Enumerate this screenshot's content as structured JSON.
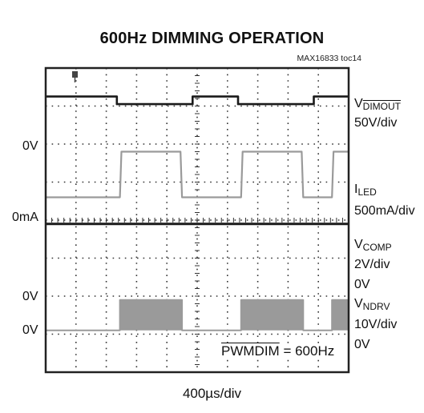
{
  "title": "600Hz DIMMING OPERATION",
  "toc": "MAX16833 toc14",
  "time_scale": "400µs/div",
  "annotation": {
    "signal": "PWMDIM",
    "value": "= 600Hz"
  },
  "left_labels": [
    "0V",
    "0mA",
    "0V",
    "0V"
  ],
  "right_labels": [
    {
      "main": "V",
      "sub": "DIMOUT",
      "sub_overline": true,
      "scale": "50V/div"
    },
    {
      "main": "I",
      "sub": "LED",
      "scale": "500mA/div"
    },
    {
      "main": "V",
      "sub": "COMP",
      "scale": "2V/div",
      "ground": "0V"
    },
    {
      "main": "V",
      "sub": "NDRV",
      "scale": "10V/div",
      "ground": "0V"
    }
  ],
  "colors": {
    "grid": "#333333",
    "trace_dark": "#1a1a1a",
    "trace_gray": "#9a9a9a"
  },
  "chart_data": {
    "type": "line",
    "x_unit": "div",
    "xlim": [
      0,
      10
    ],
    "ylim": [
      0,
      8
    ],
    "grid": true,
    "pwm_frequency_hz": 600,
    "series": [
      {
        "name": "VDIMOUT",
        "x": [
          0,
          2.35,
          2.35,
          4.85,
          4.85,
          6.35,
          6.35,
          8.85,
          8.85,
          10
        ],
        "y": [
          7.25,
          7.25,
          7.05,
          7.05,
          7.25,
          7.25,
          7.05,
          7.05,
          7.25,
          7.25
        ]
      },
      {
        "name": "ILED",
        "x": [
          0,
          2.45,
          2.5,
          4.45,
          4.5,
          6.45,
          6.5,
          8.45,
          8.5,
          9.45,
          9.5,
          10
        ],
        "y": [
          4.6,
          4.6,
          5.8,
          5.8,
          4.6,
          4.6,
          5.8,
          5.8,
          4.6,
          4.6,
          5.8,
          5.8
        ]
      },
      {
        "name": "VCOMP",
        "x": [
          0,
          10
        ],
        "y": [
          3.9,
          3.9
        ]
      },
      {
        "name": "VNDRV",
        "x": [
          0,
          2.45,
          2.45,
          4.5,
          4.5,
          6.45,
          6.45,
          8.5,
          8.5,
          9.45,
          9.45,
          10
        ],
        "y": [
          1.1,
          1.1,
          1.9,
          1.9,
          1.1,
          1.1,
          1.9,
          1.9,
          1.1,
          1.1,
          1.9,
          1.9
        ]
      }
    ]
  }
}
